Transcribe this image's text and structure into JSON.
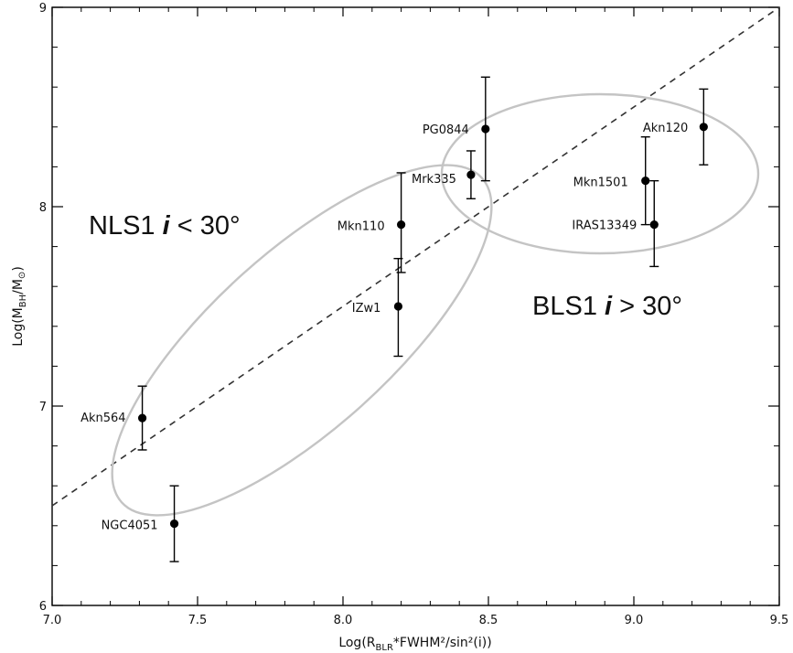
{
  "chart_data": {
    "type": "scatter",
    "xlabel": {
      "base": "Log(R",
      "sub": "BLR",
      "rest": "*FWHM²/sin²(i))"
    },
    "ylabel": {
      "base": "Log(M",
      "sub": "BH",
      "rest": "/M",
      "sun": "⊙",
      "close": ")"
    },
    "xlim": [
      7.0,
      9.5
    ],
    "ylim": [
      6.0,
      9.0
    ],
    "xticks": [
      "7.0",
      "7.5",
      "8.0",
      "8.5",
      "9.0",
      "9.5"
    ],
    "yticks": [
      "6",
      "7",
      "8",
      "9"
    ],
    "grid": false,
    "points": [
      {
        "label": "Akn564",
        "x": 7.31,
        "y": 6.94,
        "ylo": 6.78,
        "yhi": 7.1
      },
      {
        "label": "NGC4051",
        "x": 7.42,
        "y": 6.41,
        "ylo": 6.22,
        "yhi": 6.6
      },
      {
        "label": "IZw1",
        "x": 8.19,
        "y": 7.5,
        "ylo": 7.25,
        "yhi": 7.74
      },
      {
        "label": "Mkn110",
        "x": 8.2,
        "y": 7.91,
        "ylo": 7.67,
        "yhi": 8.17
      },
      {
        "label": "Mrk335",
        "x": 8.44,
        "y": 8.16,
        "ylo": 8.04,
        "yhi": 8.28
      },
      {
        "label": "PG0844",
        "x": 8.49,
        "y": 8.39,
        "ylo": 8.13,
        "yhi": 8.65
      },
      {
        "label": "Mkn1501",
        "x": 9.04,
        "y": 8.13,
        "ylo": 7.91,
        "yhi": 8.35
      },
      {
        "label": "IRAS13349",
        "x": 9.07,
        "y": 7.91,
        "ylo": 7.7,
        "yhi": 8.13
      },
      {
        "label": "Akn120",
        "x": 9.24,
        "y": 8.4,
        "ylo": 8.21,
        "yhi": 8.59
      }
    ],
    "fit_line": {
      "x": [
        7.0,
        9.5
      ],
      "y": [
        6.5,
        9.0
      ],
      "style": "dashed"
    },
    "regions": [
      {
        "name": "NLS1",
        "shape": "ellipse",
        "color": "#c4c4c4"
      },
      {
        "name": "BLS1",
        "shape": "ellipse",
        "color": "#c4c4c4"
      }
    ],
    "annotations": [
      {
        "prefix": "NLS1  ",
        "symbol": "i",
        "rest": " < 30°"
      },
      {
        "prefix": "BLS1  ",
        "symbol": "i",
        "rest": " > 30°"
      }
    ],
    "colors": {
      "points": "#000000",
      "ellipse": "#c4c4c4",
      "axes": "#000000"
    }
  }
}
